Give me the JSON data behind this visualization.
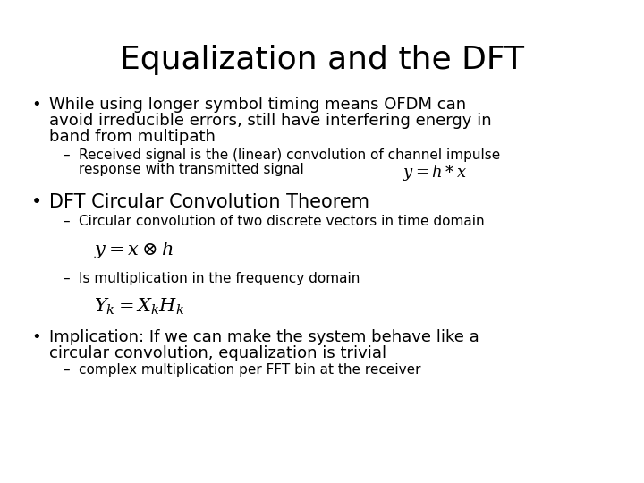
{
  "title": "Equalization and the DFT",
  "background_color": "#ffffff",
  "text_color": "#000000",
  "title_fontsize": 26,
  "body_fontsize": 13,
  "sub_fontsize": 11,
  "eq_fontsize": 13,
  "bullet1_line1": "While using longer symbol timing means OFDM can",
  "bullet1_line2": "avoid irreducible errors, still have interfering energy in",
  "bullet1_line3": "band from multipath",
  "sub1_line1": "Received signal is the (linear) convolution of channel impulse",
  "sub1_line2": "response with transmitted signal",
  "eq1": "$y = h * x$",
  "bullet2": "DFT Circular Convolution Theorem",
  "sub2": "Circular convolution of two discrete vectors in time domain",
  "eq2": "$y = x \\otimes h$",
  "sub3": "Is multiplication in the frequency domain",
  "eq3": "$Y_k = X_k H_k$",
  "bullet3_line1": "Implication: If we can make the system behave like a",
  "bullet3_line2": "circular convolution, equalization is trivial",
  "sub4": "complex multiplication per FFT bin at the receiver"
}
